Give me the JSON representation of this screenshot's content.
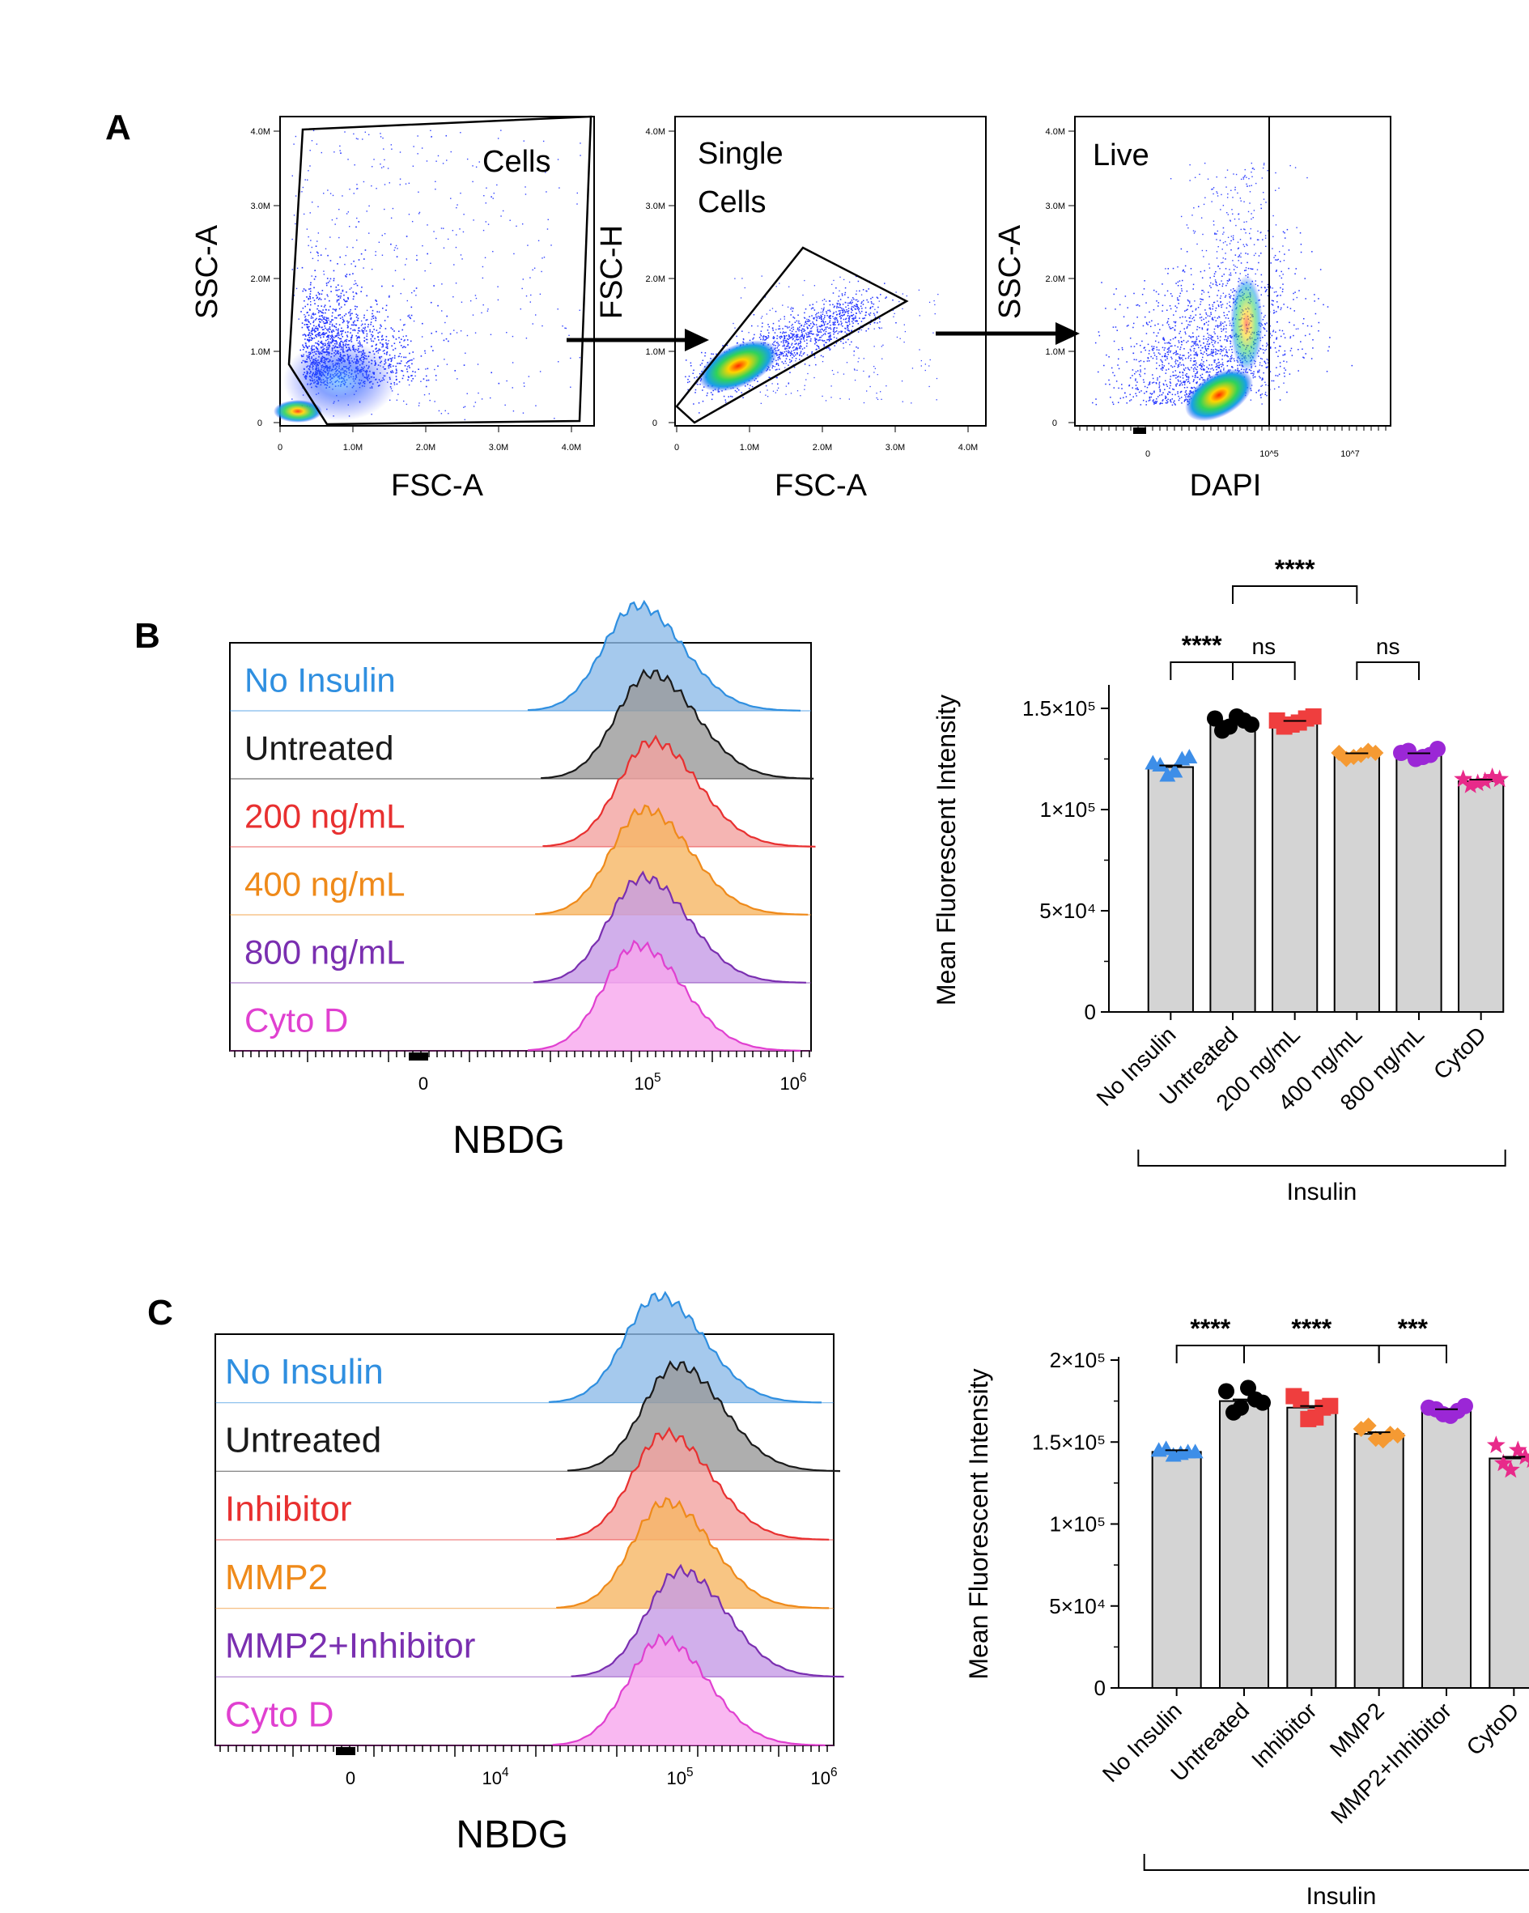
{
  "panels": {
    "A": {
      "letter": "A",
      "plots": [
        {
          "gate_label": [
            "Cells"
          ],
          "xlabel": "FSC-A",
          "ylabel": "SSC-A",
          "xticks": [
            "0",
            "1.0M",
            "2.0M",
            "3.0M",
            "4.0M"
          ],
          "yticks": [
            "0",
            "1.0M",
            "2.0M",
            "3.0M",
            "4.0M"
          ]
        },
        {
          "gate_label": [
            "Single",
            "Cells"
          ],
          "xlabel": "FSC-A",
          "ylabel": "FSC-H",
          "xticks": [
            "0",
            "1.0M",
            "2.0M",
            "3.0M",
            "4.0M"
          ],
          "yticks": [
            "0",
            "1.0M",
            "2.0M",
            "3.0M",
            "4.0M"
          ]
        },
        {
          "gate_label": [
            "Live"
          ],
          "xlabel": "DAPI",
          "ylabel": "SSC-A",
          "xticks": [
            "0",
            "10^5",
            "10^7"
          ],
          "yticks": [
            "0",
            "1.0M",
            "2.0M",
            "3.0M",
            "4.0M"
          ]
        }
      ]
    },
    "B": {
      "letter": "B",
      "histogram": {
        "xlabel": "NBDG",
        "xticks": [
          "0",
          "10^5",
          "10^6"
        ],
        "tracks": [
          {
            "label": "No Insulin",
            "color": "#2f8fe0",
            "fill": "#8fbce8",
            "peak_log": 4.98
          },
          {
            "label": "Untreated",
            "color": "#1a1a1a",
            "fill": "#9a9a9a",
            "peak_log": 5.05
          },
          {
            "label": "200 ng/mL",
            "color": "#e83030",
            "fill": "#f2a3a0",
            "peak_log": 5.06
          },
          {
            "label": "400 ng/mL",
            "color": "#ef8a1a",
            "fill": "#f6b664",
            "peak_log": 5.02
          },
          {
            "label": "800 ng/mL",
            "color": "#7a2fb0",
            "fill": "#c59be6",
            "peak_log": 5.01
          },
          {
            "label": "Cyto D",
            "color": "#e040d0",
            "fill": "#f8a6ee",
            "peak_log": 4.98
          }
        ]
      },
      "bar_chart": {
        "type": "bar",
        "ylabel": "Mean Fluorescent Intensity",
        "ylim": [
          0,
          160000
        ],
        "yticks": [
          {
            "v": 0,
            "t": "0"
          },
          {
            "v": 50000,
            "t": "5×10⁴"
          },
          {
            "v": 100000,
            "t": "1×10⁵"
          },
          {
            "v": 150000,
            "t": "1.5×10⁵"
          }
        ],
        "categories": [
          "No Insulin",
          "Untreated",
          "200 ng/mL",
          "400 ng/mL",
          "800 ng/mL",
          "CytoD"
        ],
        "values": [
          121000,
          143000,
          143000,
          127000,
          127000,
          114000
        ],
        "point_colors": [
          "#3d8ee8",
          "#000000",
          "#ef3e3e",
          "#f59a33",
          "#9b27d6",
          "#e82a8a"
        ],
        "point_markers": [
          "triangle",
          "circle",
          "square",
          "diamond",
          "circle",
          "star"
        ],
        "points": [
          [
            123000,
            117000,
            125000,
            122000,
            119000,
            126000
          ],
          [
            145000,
            141000,
            144000,
            139000,
            146000,
            142000
          ],
          [
            144000,
            142000,
            145000,
            141000,
            143000,
            146000
          ],
          [
            128000,
            126000,
            129000,
            125000,
            127000,
            128000
          ],
          [
            128000,
            125000,
            127000,
            129000,
            126000,
            130000
          ],
          [
            115000,
            113000,
            116000,
            112000,
            114000,
            115000
          ]
        ],
        "group_label": "Insulin",
        "significance": [
          {
            "a": 0,
            "b": 1,
            "text": "****",
            "level": 0
          },
          {
            "a": 1,
            "b": 2,
            "text": "ns",
            "level": 0
          },
          {
            "a": 3,
            "b": 4,
            "text": "ns",
            "level": 0
          },
          {
            "a": 1,
            "b": 3,
            "text": "****",
            "level": 1
          }
        ]
      }
    },
    "C": {
      "letter": "C",
      "histogram": {
        "xlabel": "NBDG",
        "xticks": [
          "0",
          "10^4",
          "10^5",
          "10^6"
        ],
        "tracks": [
          {
            "label": "No Insulin",
            "color": "#2f8fe0",
            "fill": "#8fbce8",
            "peak_log": 4.98
          },
          {
            "label": "Untreated",
            "color": "#1a1a1a",
            "fill": "#9a9a9a",
            "peak_log": 5.08
          },
          {
            "label": "Inhibitor",
            "color": "#e83030",
            "fill": "#f2a3a0",
            "peak_log": 5.02
          },
          {
            "label": "MMP2",
            "color": "#ef8a1a",
            "fill": "#f6b664",
            "peak_log": 5.02
          },
          {
            "label": "MMP2+Inhibitor",
            "color": "#7a2fb0",
            "fill": "#c59be6",
            "peak_log": 5.1
          },
          {
            "label": "Cyto D",
            "color": "#e040d0",
            "fill": "#f8a6ee",
            "peak_log": 5.0
          }
        ]
      },
      "bar_chart": {
        "type": "bar",
        "ylabel": "Mean Fluorescent Intensity",
        "ylim": [
          0,
          200000
        ],
        "yticks": [
          {
            "v": 0,
            "t": "0"
          },
          {
            "v": 50000,
            "t": "5×10⁴"
          },
          {
            "v": 100000,
            "t": "1×10⁵"
          },
          {
            "v": 150000,
            "t": "1.5×10⁵"
          },
          {
            "v": 200000,
            "t": "2×10⁵"
          }
        ],
        "categories": [
          "No Insulin",
          "Untreated",
          "Inhibitor",
          "MMP2",
          "MMP2+Inhibitor",
          "CytoD"
        ],
        "values": [
          144000,
          175000,
          171000,
          155000,
          169000,
          140000
        ],
        "point_colors": [
          "#3d8ee8",
          "#000000",
          "#ef3e3e",
          "#f59a33",
          "#9b27d6",
          "#e82a8a"
        ],
        "point_markers": [
          "triangle",
          "circle",
          "square",
          "diamond",
          "circle",
          "star"
        ],
        "points": [
          [
            145000,
            142000,
            144000,
            146000,
            143000,
            144000
          ],
          [
            181000,
            171000,
            176000,
            168000,
            183000,
            174000
          ],
          [
            178000,
            164000,
            171000,
            176000,
            165000,
            172000
          ],
          [
            158000,
            152000,
            155000,
            160000,
            151000,
            154000
          ],
          [
            171000,
            167000,
            169000,
            170000,
            166000,
            172000
          ],
          [
            148000,
            133000,
            141000,
            137000,
            145000,
            139000
          ]
        ],
        "group_label": "Insulin",
        "significance": [
          {
            "a": 0,
            "b": 1,
            "text": "****",
            "level": 0
          },
          {
            "a": 1,
            "b": 3,
            "text": "****",
            "level": 0
          },
          {
            "a": 3,
            "b": 4,
            "text": "***",
            "level": 0
          }
        ]
      }
    }
  }
}
